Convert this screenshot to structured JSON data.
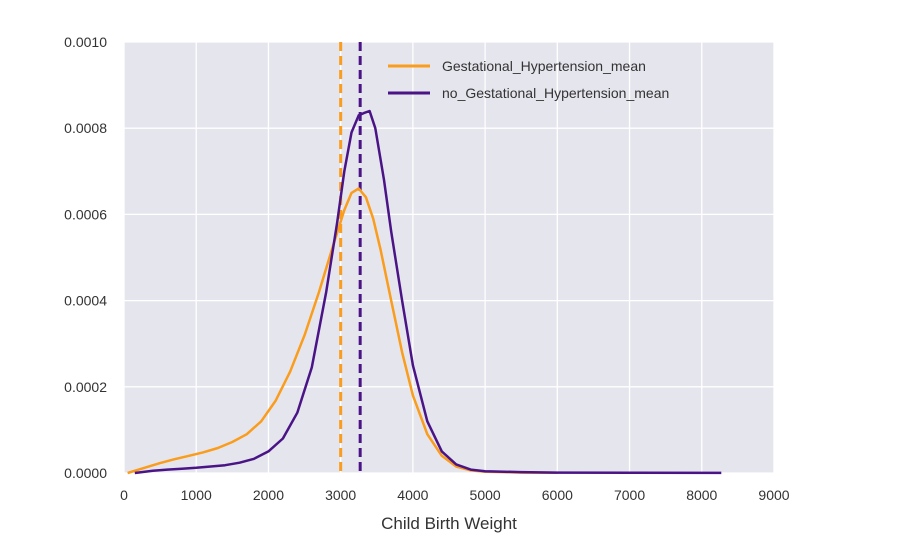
{
  "chart_data": {
    "type": "line",
    "title": "",
    "xlabel": "Child Birth Weight",
    "ylabel": "",
    "xlim": [
      0,
      9000
    ],
    "ylim": [
      0,
      0.001
    ],
    "grid": true,
    "legend_placement": "top-right",
    "x_ticks": [
      {
        "value": 0,
        "label": "0"
      },
      {
        "value": 1000,
        "label": "1000"
      },
      {
        "value": 2000,
        "label": "2000"
      },
      {
        "value": 3000,
        "label": "3000"
      },
      {
        "value": 4000,
        "label": "4000"
      },
      {
        "value": 5000,
        "label": "5000"
      },
      {
        "value": 6000,
        "label": "6000"
      },
      {
        "value": 7000,
        "label": "7000"
      },
      {
        "value": 8000,
        "label": "8000"
      },
      {
        "value": 9000,
        "label": "9000"
      }
    ],
    "y_ticks": [
      {
        "value": 0,
        "label": "0.0000"
      },
      {
        "value": 0.0002,
        "label": "0.0002"
      },
      {
        "value": 0.0004,
        "label": "0.0004"
      },
      {
        "value": 0.0006,
        "label": "0.0006"
      },
      {
        "value": 0.0008,
        "label": "0.0008"
      },
      {
        "value": 0.001,
        "label": "0.0010"
      }
    ],
    "colors": {
      "background": "#e5e5ee",
      "grid": "#ffffff"
    },
    "series": [
      {
        "name": "Gestational_Hypertension_mean",
        "color": "#fa9c1c",
        "mean_line": 3000,
        "points": [
          [
            50,
            0.0
          ],
          [
            300,
            1.3e-05
          ],
          [
            500,
            2.3e-05
          ],
          [
            700,
            3.2e-05
          ],
          [
            900,
            4e-05
          ],
          [
            1100,
            4.8e-05
          ],
          [
            1300,
            5.8e-05
          ],
          [
            1500,
            7.2e-05
          ],
          [
            1700,
            9e-05
          ],
          [
            1900,
            0.00012
          ],
          [
            2100,
            0.000168
          ],
          [
            2300,
            0.000235
          ],
          [
            2500,
            0.00032
          ],
          [
            2700,
            0.00042
          ],
          [
            2900,
            0.00053
          ],
          [
            3050,
            0.00061
          ],
          [
            3150,
            0.00065
          ],
          [
            3250,
            0.00066
          ],
          [
            3350,
            0.00064
          ],
          [
            3450,
            0.00059
          ],
          [
            3550,
            0.00052
          ],
          [
            3700,
            0.0004
          ],
          [
            3850,
            0.00028
          ],
          [
            4000,
            0.00018
          ],
          [
            4200,
            9e-05
          ],
          [
            4400,
            4e-05
          ],
          [
            4600,
            1.5e-05
          ],
          [
            4800,
            6e-06
          ],
          [
            5000,
            3e-06
          ],
          [
            5500,
            1e-06
          ],
          [
            6000,
            5e-07
          ]
        ]
      },
      {
        "name": "no_Gestational_Hypertension_mean",
        "color": "#4a1486",
        "mean_line": 3270,
        "points": [
          [
            150,
            0.0
          ],
          [
            400,
            5e-06
          ],
          [
            600,
            8e-06
          ],
          [
            800,
            1e-05
          ],
          [
            1000,
            1.2e-05
          ],
          [
            1200,
            1.5e-05
          ],
          [
            1400,
            1.8e-05
          ],
          [
            1600,
            2.4e-05
          ],
          [
            1800,
            3.3e-05
          ],
          [
            2000,
            5e-05
          ],
          [
            2200,
            8e-05
          ],
          [
            2400,
            0.00014
          ],
          [
            2600,
            0.000245
          ],
          [
            2800,
            0.00042
          ],
          [
            2950,
            0.00058
          ],
          [
            3050,
            0.0007
          ],
          [
            3150,
            0.00079
          ],
          [
            3250,
            0.00083
          ],
          [
            3320,
            0.000835
          ],
          [
            3400,
            0.00084
          ],
          [
            3480,
            0.0008
          ],
          [
            3600,
            0.00068
          ],
          [
            3700,
            0.00056
          ],
          [
            3850,
            0.0004
          ],
          [
            4000,
            0.00025
          ],
          [
            4200,
            0.00012
          ],
          [
            4400,
            5e-05
          ],
          [
            4600,
            2e-05
          ],
          [
            4800,
            8e-06
          ],
          [
            5000,
            4e-06
          ],
          [
            5500,
            2e-06
          ],
          [
            6000,
            1e-06
          ],
          [
            7000,
            5e-07
          ],
          [
            8270,
            2e-07
          ]
        ]
      }
    ]
  }
}
